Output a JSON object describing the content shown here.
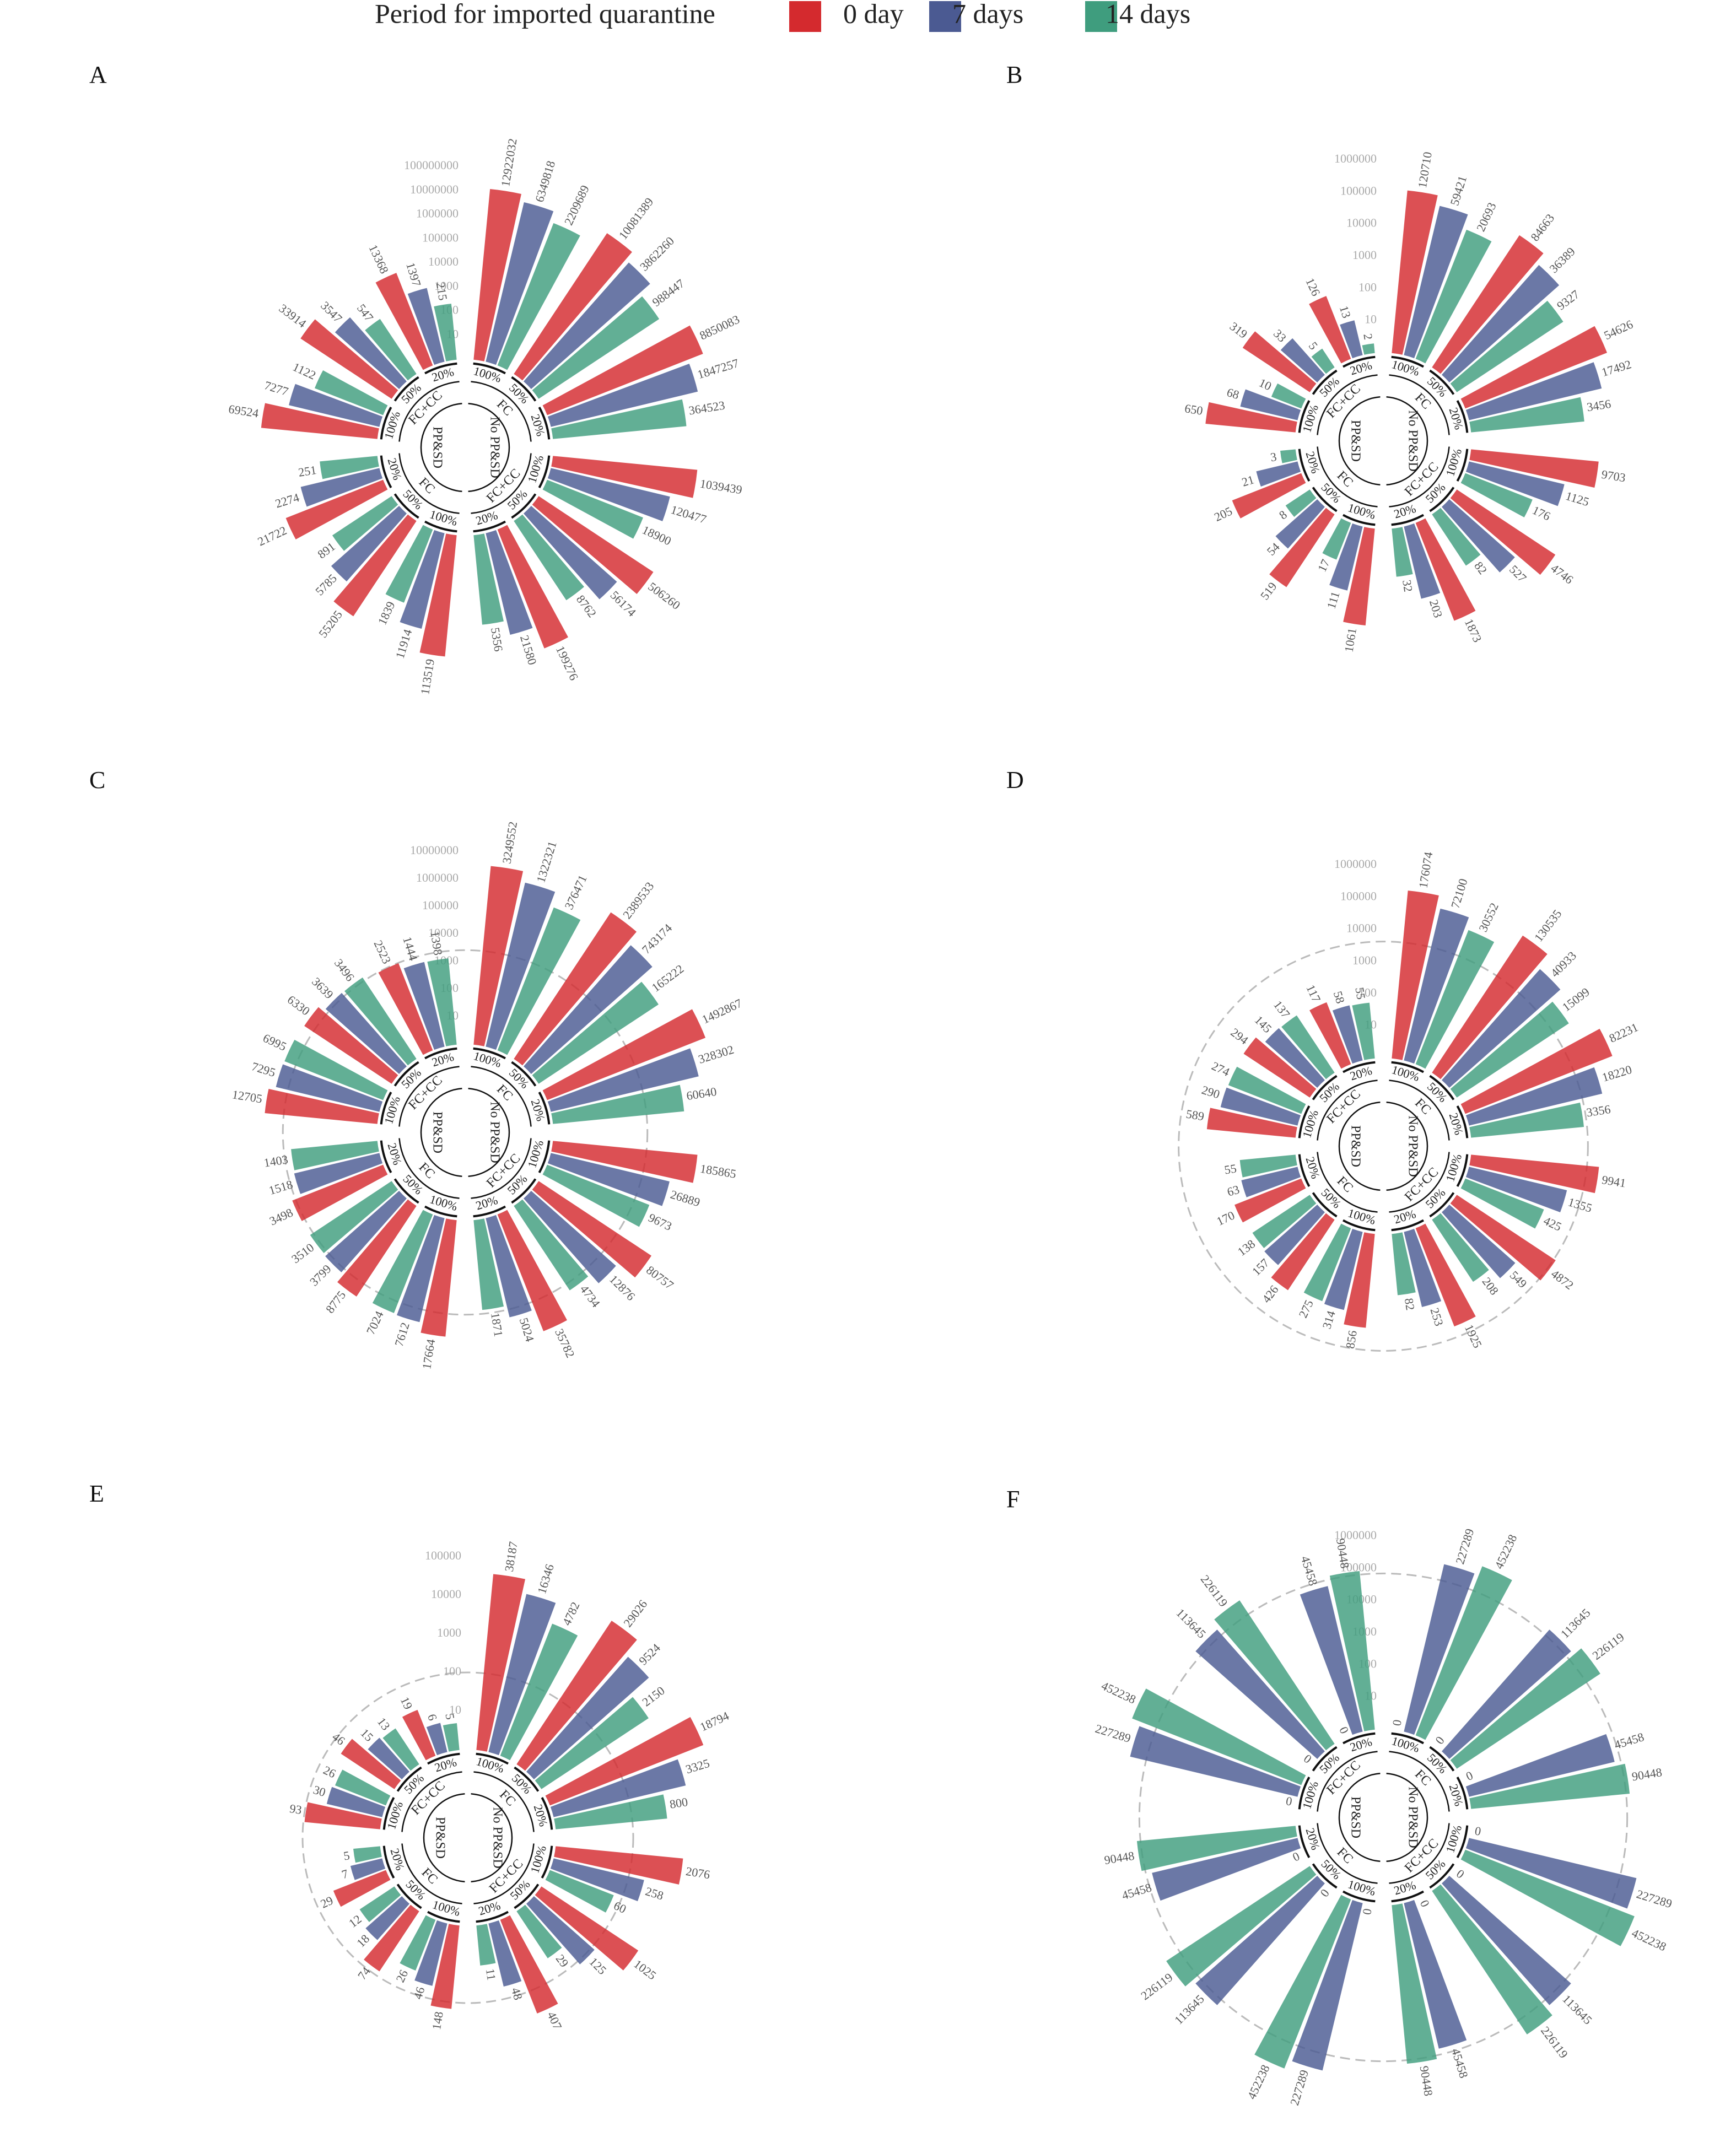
{
  "legend_title": "Period for imported quarantine",
  "chart_data": [
    {
      "type": "polar_bar",
      "label": "A",
      "log_scale": true,
      "ylim": [
        1,
        100000000
      ],
      "yticks": [
        10,
        100,
        1000,
        10000,
        100000,
        1000000,
        10000000,
        100000000
      ],
      "groups": [
        "No PP&SD",
        "PP&SD"
      ],
      "subgroups": [
        "FC",
        "FC+CC",
        "FC",
        "FC+CC"
      ],
      "categories": [
        "100%",
        "50%",
        "20%",
        "100%",
        "50%",
        "20%",
        "100%",
        "50%",
        "20%",
        "100%",
        "50%",
        "20%"
      ],
      "series": [
        {
          "name": "0 day",
          "color": "#d42a2e",
          "values": [
            12922032,
            10081389,
            8850083,
            1039439,
            506260,
            199276,
            113519,
            55205,
            21722,
            69524,
            33914,
            13368
          ]
        },
        {
          "name": "7 days",
          "color": "#4b5a92",
          "values": [
            6349818,
            3862260,
            1847257,
            120477,
            56174,
            21580,
            11914,
            5785,
            2274,
            7277,
            3547,
            1397
          ]
        },
        {
          "name": "14 days",
          "color": "#3f9d7e",
          "values": [
            2209689,
            988447,
            364523,
            18900,
            8762,
            5356,
            1839,
            891,
            251,
            1122,
            547,
            215
          ]
        }
      ]
    },
    {
      "type": "polar_bar",
      "label": "B",
      "log_scale": true,
      "ylim": [
        1,
        1000000
      ],
      "yticks": [
        10,
        100,
        1000,
        10000,
        100000,
        1000000
      ],
      "groups": [
        "No PP&SD",
        "PP&SD"
      ],
      "subgroups": [
        "FC",
        "FC+CC",
        "FC",
        "FC+CC"
      ],
      "categories": [
        "100%",
        "50%",
        "20%",
        "100%",
        "50%",
        "20%",
        "100%",
        "50%",
        "20%",
        "100%",
        "50%",
        "20%"
      ],
      "series": [
        {
          "name": "0 day",
          "color": "#d42a2e",
          "values": [
            120710,
            84663,
            54626,
            9703,
            4746,
            1873,
            1061,
            519,
            205,
            650,
            319,
            126
          ]
        },
        {
          "name": "7 days",
          "color": "#4b5a92",
          "values": [
            59421,
            36389,
            17492,
            1125,
            527,
            203,
            111,
            54,
            21,
            68,
            33,
            13
          ]
        },
        {
          "name": "14 days",
          "color": "#3f9d7e",
          "values": [
            20693,
            9327,
            3456,
            176,
            82,
            32,
            17,
            8,
            3,
            10,
            5,
            2
          ]
        }
      ]
    },
    {
      "type": "polar_bar",
      "label": "C",
      "log_scale": true,
      "ylim": [
        1,
        10000000
      ],
      "yticks": [
        10,
        100,
        1000,
        10000,
        100000,
        1000000,
        10000000
      ],
      "reference_line": 2600,
      "groups": [
        "No PP&SD",
        "PP&SD"
      ],
      "subgroups": [
        "FC",
        "FC+CC",
        "FC",
        "FC+CC"
      ],
      "categories": [
        "100%",
        "50%",
        "20%",
        "100%",
        "50%",
        "20%",
        "100%",
        "50%",
        "20%",
        "100%",
        "50%",
        "20%"
      ],
      "series": [
        {
          "name": "0 day",
          "color": "#d42a2e",
          "values": [
            3249552,
            2389533,
            1492867,
            185865,
            80757,
            35782,
            17664,
            8775,
            3498,
            12705,
            6330,
            2523
          ]
        },
        {
          "name": "7 days",
          "color": "#4b5a92",
          "values": [
            1322321,
            743174,
            328302,
            26889,
            12876,
            5024,
            7612,
            3799,
            1518,
            7295,
            3639,
            1444
          ]
        },
        {
          "name": "14 days",
          "color": "#3f9d7e",
          "values": [
            376471,
            165222,
            60640,
            9673,
            4734,
            1871,
            7024,
            3510,
            1403,
            6995,
            3496,
            1398
          ]
        }
      ]
    },
    {
      "type": "polar_bar",
      "label": "D",
      "log_scale": true,
      "ylim": [
        1,
        1000000
      ],
      "yticks": [
        10,
        100,
        1000,
        10000,
        100000,
        1000000
      ],
      "reference_line": 4200,
      "groups": [
        "No PP&SD",
        "PP&SD"
      ],
      "subgroups": [
        "FC",
        "FC+CC",
        "FC",
        "FC+CC"
      ],
      "categories": [
        "100%",
        "50%",
        "20%",
        "100%",
        "50%",
        "20%",
        "100%",
        "50%",
        "20%",
        "100%",
        "50%",
        "20%"
      ],
      "series": [
        {
          "name": "0 day",
          "color": "#d42a2e",
          "values": [
            176074,
            130535,
            82231,
            9941,
            4872,
            1925,
            856,
            426,
            170,
            589,
            294,
            117
          ]
        },
        {
          "name": "7 days",
          "color": "#4b5a92",
          "values": [
            72100,
            40933,
            18220,
            1355,
            549,
            253,
            314,
            157,
            63,
            290,
            145,
            58
          ]
        },
        {
          "name": "14 days",
          "color": "#3f9d7e",
          "values": [
            30552,
            15099,
            3356,
            425,
            208,
            82,
            275,
            138,
            55,
            274,
            137,
            55
          ]
        }
      ]
    },
    {
      "type": "polar_bar",
      "label": "E",
      "log_scale": true,
      "ylim": [
        1,
        100000
      ],
      "yticks": [
        10,
        100,
        1000,
        10000,
        100000
      ],
      "reference_line": 100,
      "groups": [
        "No PP&SD",
        "PP&SD"
      ],
      "subgroups": [
        "FC",
        "FC+CC",
        "FC",
        "FC+CC"
      ],
      "categories": [
        "100%",
        "50%",
        "20%",
        "100%",
        "50%",
        "20%",
        "100%",
        "50%",
        "20%",
        "100%",
        "50%",
        "20%"
      ],
      "series": [
        {
          "name": "0 day",
          "color": "#d42a2e",
          "values": [
            38187,
            29026,
            18794,
            2076,
            1025,
            407,
            148,
            74,
            29,
            93,
            46,
            19
          ]
        },
        {
          "name": "7 days",
          "color": "#4b5a92",
          "values": [
            16346,
            9524,
            3325,
            258,
            125,
            48,
            46,
            18,
            7,
            30,
            15,
            6
          ]
        },
        {
          "name": "14 days",
          "color": "#3f9d7e",
          "values": [
            4782,
            2150,
            800,
            60,
            29,
            11,
            26,
            12,
            5,
            26,
            13,
            5
          ]
        }
      ]
    },
    {
      "type": "polar_bar",
      "label": "F",
      "log_scale": true,
      "ylim": [
        1,
        1000000
      ],
      "yticks": [
        10,
        100,
        1000,
        10000,
        100000,
        1000000
      ],
      "reference_line": 70000,
      "groups": [
        "No PP&SD",
        "PP&SD"
      ],
      "subgroups": [
        "FC",
        "FC+CC",
        "FC",
        "FC+CC"
      ],
      "categories": [
        "100%",
        "50%",
        "20%",
        "100%",
        "50%",
        "20%",
        "100%",
        "50%",
        "20%",
        "100%",
        "50%",
        "20%"
      ],
      "series": [
        {
          "name": "0 day",
          "color": "#d42a2e",
          "values": [
            0,
            0,
            0,
            0,
            0,
            0,
            0,
            0,
            0,
            0,
            0,
            0
          ]
        },
        {
          "name": "7 days",
          "color": "#4b5a92",
          "values": [
            227289,
            113645,
            45458,
            227289,
            113645,
            45458,
            227289,
            113645,
            45458,
            227289,
            113645,
            45458
          ]
        },
        {
          "name": "14 days",
          "color": "#3f9d7e",
          "values": [
            452238,
            226119,
            90448,
            452238,
            226119,
            90448,
            452238,
            226119,
            90448,
            452238,
            226119,
            90448
          ]
        }
      ]
    }
  ]
}
